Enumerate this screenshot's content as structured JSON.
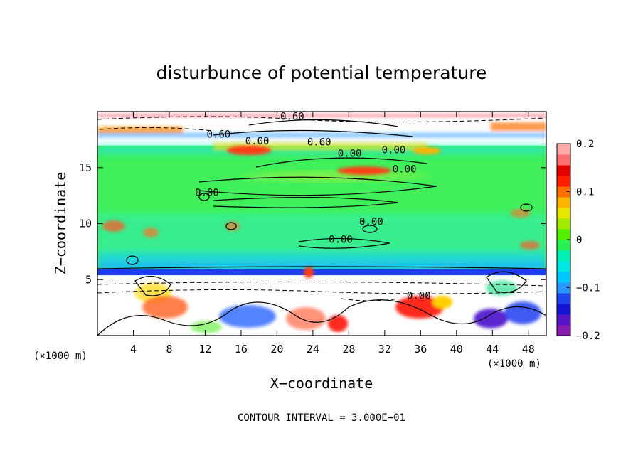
{
  "chart_data": {
    "type": "heatmap",
    "title": "disturbunce of potential temperature",
    "xlabel": "X−coordinate",
    "ylabel": "Z−coordinate",
    "x_unit": "(×1000 m)",
    "y_unit": "(×1000 m)",
    "xlim": [
      0,
      50
    ],
    "ylim": [
      0,
      20
    ],
    "x_ticks": [
      4,
      8,
      12,
      16,
      20,
      24,
      28,
      32,
      36,
      40,
      44,
      48
    ],
    "y_ticks": [
      5,
      10,
      15
    ],
    "colorbar": {
      "min": -0.2,
      "max": 0.2,
      "ticks": [
        0.2,
        0.1,
        0,
        -0.1,
        -0.2
      ],
      "tick_labels": [
        "0.2",
        "0.1",
        "0",
        "−0.1",
        "−0.2"
      ],
      "colors": [
        "#8a1ab4",
        "#5a14c8",
        "#1414d2",
        "#1e46f0",
        "#2896ff",
        "#00c8ff",
        "#00e6e6",
        "#00f0b4",
        "#28f050",
        "#50f000",
        "#a0eb00",
        "#e6e600",
        "#ffb400",
        "#ff6e00",
        "#ff1e00",
        "#e60000",
        "#ff6e6e",
        "#ffaaaa"
      ]
    },
    "contour_labels": [
      {
        "text": "0.60",
        "x": 21.7,
        "z": 19.6
      },
      {
        "text": "0.60",
        "x": 13.5,
        "z": 18.0
      },
      {
        "text": "0.00",
        "x": 17.8,
        "z": 17.4
      },
      {
        "text": "0.60",
        "x": 24.7,
        "z": 17.3
      },
      {
        "text": "0.00",
        "x": 28.1,
        "z": 16.3
      },
      {
        "text": "0.00",
        "x": 33.0,
        "z": 16.6
      },
      {
        "text": "0.00",
        "x": 34.2,
        "z": 14.9
      },
      {
        "text": "0.00",
        "x": 12.2,
        "z": 12.8
      },
      {
        "text": "0.00",
        "x": 30.5,
        "z": 10.2
      },
      {
        "text": "0.00",
        "x": 27.1,
        "z": 8.6
      },
      {
        "text": "0.00",
        "x": 35.8,
        "z": 3.6
      }
    ],
    "annotation": "CONTOUR INTERVAL = 3.000E−01"
  }
}
